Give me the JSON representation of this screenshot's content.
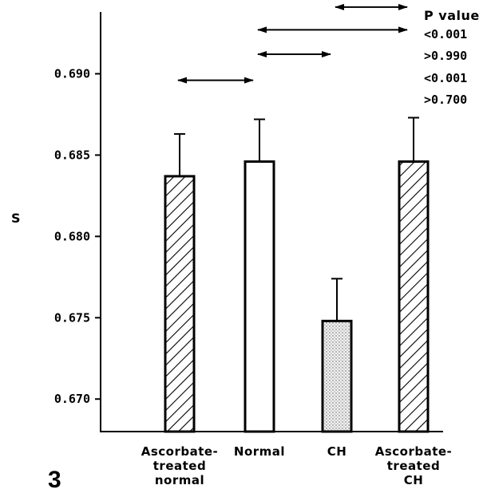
{
  "figure": {
    "number": "3"
  },
  "chart_data": {
    "type": "bar",
    "ylabel": "S",
    "xlabel": "",
    "ylim": [
      0.668,
      0.6938
    ],
    "y_ticks": [
      {
        "value": 0.67,
        "label": "0.670"
      },
      {
        "value": 0.675,
        "label": "0.675"
      },
      {
        "value": 0.68,
        "label": "0.680"
      },
      {
        "value": 0.685,
        "label": "0.685"
      },
      {
        "value": 0.69,
        "label": "0.690"
      }
    ],
    "categories": [
      {
        "lines": [
          "Ascorbate-",
          "treated",
          "normal"
        ],
        "pattern": "hatched"
      },
      {
        "lines": [
          "Normal"
        ],
        "pattern": "open"
      },
      {
        "lines": [
          "CH"
        ],
        "pattern": "stippled"
      },
      {
        "lines": [
          "Ascorbate-",
          "treated",
          "CH"
        ],
        "pattern": "hatched"
      }
    ],
    "values": [
      0.6837,
      0.6846,
      0.6748,
      0.6846
    ],
    "errors": [
      0.0026,
      0.0026,
      0.0026,
      0.0027
    ],
    "comparisons_header": "P value",
    "comparisons": [
      {
        "from": 2,
        "to": 3,
        "level": 0.6941,
        "p": "<0.001"
      },
      {
        "from": 1,
        "to": 3,
        "level": 0.6927,
        "p": ">0.990"
      },
      {
        "from": 1,
        "to": 2,
        "level": 0.6912,
        "p": "<0.001"
      },
      {
        "from": 0,
        "to": 1,
        "level": 0.6896,
        "p": ">0.700"
      }
    ]
  }
}
